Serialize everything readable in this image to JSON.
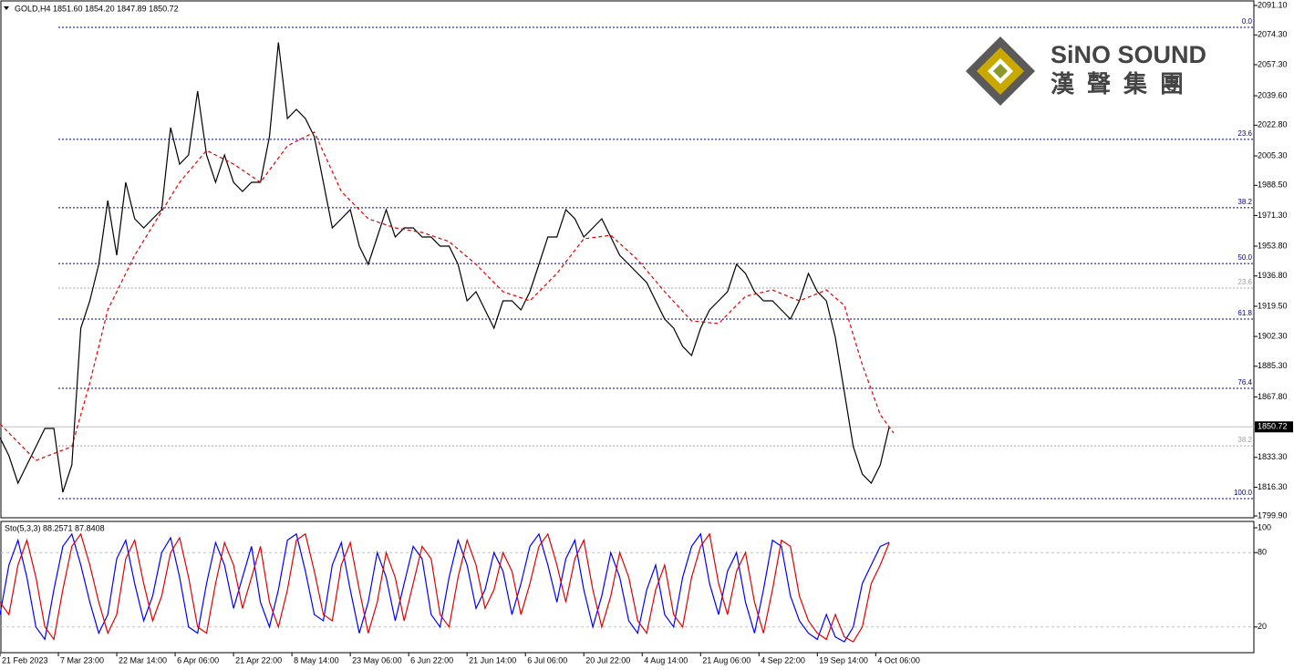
{
  "chart_data": [
    {
      "type": "line",
      "title": "GOLD,H4  1851.60 1854.20 1847.89 1850.72",
      "xlim": [
        0,
        139.6
      ],
      "ylim": [
        1798.86,
        2094.22
      ],
      "yticks": [
        {
          "value": 2091.1,
          "label": "2091.10"
        },
        {
          "value": 2074.3,
          "label": "2074.30"
        },
        {
          "value": 2057.3,
          "label": "2057.30"
        },
        {
          "value": 2039.6,
          "label": "2039.60"
        },
        {
          "value": 2022.8,
          "label": "2022.80"
        },
        {
          "value": 2005.3,
          "label": "2005.30"
        },
        {
          "value": 1988.5,
          "label": "1988.50"
        },
        {
          "value": 1971.3,
          "label": "1971.30"
        },
        {
          "value": 1953.8,
          "label": "1953.80"
        },
        {
          "value": 1936.8,
          "label": "1936.80"
        },
        {
          "value": 1919.5,
          "label": "1919.50"
        },
        {
          "value": 1902.3,
          "label": "1902.30"
        },
        {
          "value": 1885.3,
          "label": "1885.30"
        },
        {
          "value": 1867.8,
          "label": "1867.80"
        },
        {
          "value": 1833.3,
          "label": "1833.30"
        },
        {
          "value": 1816.3,
          "label": "1816.30"
        },
        {
          "value": 1799.9,
          "label": "1799.90"
        }
      ],
      "xticks": [
        {
          "value": 0,
          "label": "21 Feb 2023"
        },
        {
          "value": 6.5,
          "label": "7 Mar 23:00"
        },
        {
          "value": 13,
          "label": "22 Mar 14:00"
        },
        {
          "value": 19.5,
          "label": "6 Apr 06:00"
        },
        {
          "value": 26,
          "label": "21 Apr 22:00"
        },
        {
          "value": 32.5,
          "label": "8 May 14:00"
        },
        {
          "value": 39,
          "label": "23 May 06:00"
        },
        {
          "value": 45.5,
          "label": "6 Jun 22:00"
        },
        {
          "value": 52,
          "label": "21 Jun 14:00"
        },
        {
          "value": 58.5,
          "label": "6 Jul 06:00"
        },
        {
          "value": 65,
          "label": "20 Jul 22:00"
        },
        {
          "value": 71.5,
          "label": "4 Aug 14:00"
        },
        {
          "value": 78,
          "label": "21 Aug 06:00"
        },
        {
          "value": 84.5,
          "label": "4 Sep 22:00"
        },
        {
          "value": 91,
          "label": "19 Sep 14:00"
        },
        {
          "value": 97.5,
          "label": "4 Oct 06:00"
        }
      ],
      "last_price": 1850.72,
      "fib_levels": [
        {
          "label": "0.0",
          "price": 2078.6
        },
        {
          "label": "23.6",
          "price": 2014.7
        },
        {
          "label": "38.2",
          "price": 1975.7
        },
        {
          "label": "50.0",
          "price": 1943.9
        },
        {
          "label": "61.8",
          "price": 1912.2
        },
        {
          "label": "76.4",
          "price": 1872.7
        },
        {
          "label": "100.0",
          "price": 1809.8
        }
      ],
      "fib_levels_2": [
        {
          "label": "23.6",
          "price": 1929.9
        },
        {
          "label": "38.2",
          "price": 1839.9
        }
      ],
      "series": [
        {
          "color": "#000000",
          "values": [
            1844.6,
            1834.2,
            1818.6,
            1829.0,
            1839.4,
            1849.8,
            1849.8,
            1813.4,
            1829.0,
            1907.0,
            1922.6,
            1943.4,
            1979.8,
            1948.6,
            1990.2,
            1969.4,
            1964.2,
            1969.4,
            1974.6,
            2021.4,
            2000.6,
            2005.8,
            2042.2,
            2005.8,
            1990.2,
            2005.8,
            1990.2,
            1985.0,
            1990.2,
            1990.2,
            2016.2,
            2070.0,
            2026.6,
            2031.8,
            2026.6,
            2016.2,
            1990.2,
            1964.2,
            1969.4,
            1974.6,
            1953.8,
            1943.4,
            1959.0,
            1974.6,
            1959.0,
            1964.2,
            1964.2,
            1959.0,
            1959.0,
            1953.8,
            1953.8,
            1943.4,
            1922.6,
            1927.8,
            1917.4,
            1907.0,
            1922.6,
            1922.6,
            1917.4,
            1927.8,
            1943.4,
            1959.0,
            1959.0,
            1974.6,
            1969.4,
            1959.0,
            1964.2,
            1969.4,
            1959.0,
            1948.6,
            1943.4,
            1938.2,
            1933.0,
            1922.6,
            1912.2,
            1907.0,
            1896.6,
            1891.4,
            1907.0,
            1917.4,
            1922.6,
            1927.8,
            1943.4,
            1938.2,
            1927.8,
            1922.6,
            1922.6,
            1917.4,
            1912.2,
            1922.6,
            1938.2,
            1927.8,
            1922.6,
            1901.8,
            1870.6,
            1839.4,
            1823.8,
            1818.6,
            1829.0,
            1850.72
          ]
        },
        {
          "color": "#e00000",
          "dashed": true,
          "x": [
            0,
            4,
            8,
            10,
            12,
            15,
            20,
            23,
            26,
            29,
            32,
            35,
            38,
            41,
            44,
            47,
            50,
            53,
            56,
            59,
            62,
            65,
            68,
            71,
            74,
            77,
            80,
            83,
            86,
            89,
            92,
            94,
            96,
            98,
            99.5
          ],
          "values": [
            1852.4,
            1831.6,
            1839.4,
            1875.8,
            1917.4,
            1948.6,
            1990.2,
            2008.4,
            2000.6,
            1990.2,
            2011.0,
            2018.8,
            1985.0,
            1969.4,
            1964.2,
            1961.6,
            1956.4,
            1943.4,
            1927.8,
            1922.6,
            1938.2,
            1958.0,
            1960.0,
            1946.0,
            1927.8,
            1911.2,
            1909.6,
            1925.2,
            1928.8,
            1922.6,
            1928.8,
            1920.0,
            1886.2,
            1857.6,
            1847.2
          ]
        }
      ],
      "logo": {
        "name": "SiNO SOUND",
        "subtitle": "漢聲集團"
      }
    },
    {
      "type": "line",
      "title": "Sto(5,3,3) 88.2571 87.8408",
      "xlim": [
        0,
        139.6
      ],
      "ylim": [
        0,
        100
      ],
      "yticks": [
        100,
        80,
        20
      ],
      "levels": [
        80,
        20
      ],
      "series": [
        {
          "color": "#0000ff",
          "values": [
            30,
            70,
            90,
            60,
            20,
            10,
            50,
            85,
            95,
            70,
            40,
            15,
            30,
            75,
            90,
            55,
            25,
            45,
            80,
            92,
            60,
            20,
            15,
            55,
            88,
            70,
            35,
            60,
            85,
            40,
            20,
            50,
            90,
            95,
            65,
            30,
            25,
            70,
            88,
            50,
            15,
            40,
            80,
            60,
            25,
            55,
            85,
            75,
            30,
            20,
            60,
            90,
            70,
            35,
            50,
            80,
            65,
            30,
            55,
            85,
            95,
            70,
            40,
            75,
            90,
            50,
            20,
            45,
            80,
            60,
            25,
            15,
            50,
            70,
            30,
            20,
            60,
            85,
            95,
            55,
            30,
            65,
            80,
            40,
            15,
            50,
            90,
            85,
            45,
            25,
            15,
            10,
            30,
            12,
            8,
            20,
            55,
            70,
            85,
            88.2571
          ]
        },
        {
          "color": "#e00000",
          "values": [
            40,
            30,
            70,
            90,
            60,
            20,
            10,
            50,
            85,
            95,
            70,
            40,
            15,
            30,
            75,
            90,
            55,
            25,
            45,
            80,
            92,
            60,
            20,
            15,
            55,
            88,
            70,
            35,
            60,
            85,
            40,
            20,
            50,
            90,
            95,
            65,
            30,
            25,
            70,
            88,
            50,
            15,
            40,
            80,
            60,
            25,
            55,
            85,
            75,
            30,
            20,
            60,
            90,
            70,
            35,
            50,
            80,
            65,
            30,
            55,
            85,
            95,
            70,
            40,
            75,
            90,
            50,
            20,
            45,
            80,
            60,
            25,
            15,
            50,
            70,
            30,
            20,
            60,
            85,
            95,
            55,
            30,
            65,
            80,
            40,
            15,
            50,
            90,
            85,
            45,
            25,
            15,
            10,
            30,
            12,
            8,
            20,
            55,
            70,
            87.8408
          ]
        }
      ]
    }
  ]
}
